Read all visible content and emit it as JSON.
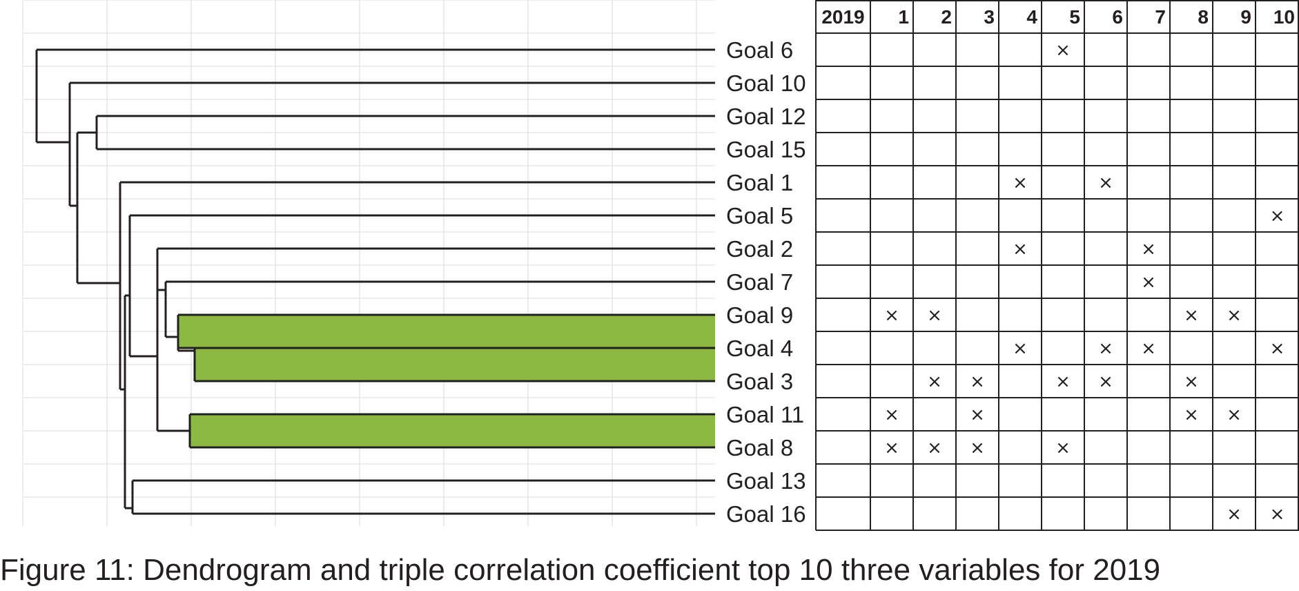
{
  "caption": "Figure 11: Dendrogram and triple correlation coefficient top 10 three variables for 2019",
  "colors": {
    "highlight": "#8aba42",
    "ink": "#231f20",
    "grid": "#e6e6e6"
  },
  "dendrogram": {
    "leaves": [
      "Goal 6",
      "Goal 10",
      "Goal 12",
      "Goal 15",
      "Goal 1",
      "Goal 5",
      "Goal 2",
      "Goal 7",
      "Goal 9",
      "Goal 4",
      "Goal 3",
      "Goal 11",
      "Goal 8",
      "Goal 13",
      "Goal 16"
    ],
    "highlighted_clusters": [
      [
        "Goal 9",
        "Goal 4",
        "Goal 3"
      ],
      [
        "Goal 11",
        "Goal 8"
      ]
    ]
  },
  "table": {
    "header_label": "2019",
    "columns": [
      "1",
      "2",
      "3",
      "4",
      "5",
      "6",
      "7",
      "8",
      "9",
      "10"
    ],
    "mark_symbol": "×",
    "rows": [
      {
        "goal": "Goal 6",
        "marks": [
          5
        ]
      },
      {
        "goal": "Goal 10",
        "marks": []
      },
      {
        "goal": "Goal 12",
        "marks": []
      },
      {
        "goal": "Goal 15",
        "marks": []
      },
      {
        "goal": "Goal 1",
        "marks": [
          4,
          6
        ]
      },
      {
        "goal": "Goal 5",
        "marks": [
          10
        ]
      },
      {
        "goal": "Goal 2",
        "marks": [
          4,
          7
        ]
      },
      {
        "goal": "Goal 7",
        "marks": [
          7
        ]
      },
      {
        "goal": "Goal 9",
        "marks": [
          1,
          2,
          8,
          9
        ]
      },
      {
        "goal": "Goal 4",
        "marks": [
          4,
          6,
          7,
          10
        ]
      },
      {
        "goal": "Goal 3",
        "marks": [
          2,
          3,
          5,
          6,
          8
        ]
      },
      {
        "goal": "Goal 11",
        "marks": [
          1,
          3,
          8,
          9
        ]
      },
      {
        "goal": "Goal 8",
        "marks": [
          1,
          2,
          3,
          5
        ]
      },
      {
        "goal": "Goal 13",
        "marks": []
      },
      {
        "goal": "Goal 16",
        "marks": [
          9,
          10
        ]
      }
    ]
  }
}
